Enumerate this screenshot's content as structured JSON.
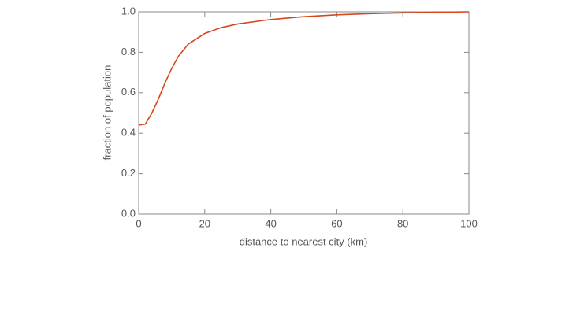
{
  "chart_data": {
    "type": "line",
    "xlabel": "distance to nearest city (km)",
    "ylabel": "fraction of population",
    "x": [
      0,
      2,
      4,
      6,
      8,
      10,
      12,
      15,
      20,
      25,
      30,
      40,
      50,
      60,
      70,
      80,
      90,
      100
    ],
    "series": [
      {
        "color": "#d4471f",
        "values": [
          0.44,
          0.445,
          0.5,
          0.57,
          0.65,
          0.72,
          0.78,
          0.84,
          0.893,
          0.922,
          0.94,
          0.962,
          0.976,
          0.985,
          0.991,
          0.995,
          0.998,
          1.0
        ]
      }
    ],
    "xlim": [
      0,
      100
    ],
    "xticks": [
      0,
      20,
      40,
      60,
      80,
      100
    ],
    "ylim": [
      0,
      1
    ],
    "yticks": [
      {
        "value": 0,
        "label": "0.0"
      },
      0.2,
      0.4,
      0.6,
      0.8,
      {
        "value": 1,
        "label": "1.0"
      }
    ]
  }
}
